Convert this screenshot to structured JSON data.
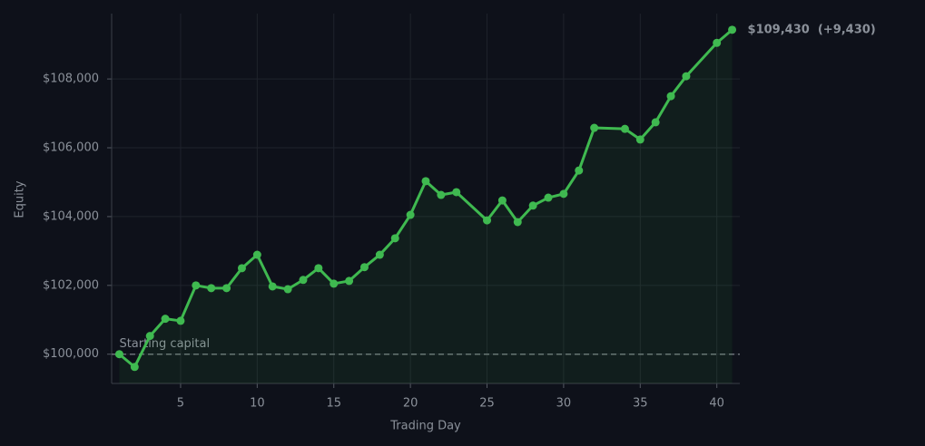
{
  "chart_data": {
    "type": "line",
    "xlabel": "Trading Day",
    "ylabel": "Equity",
    "x": [
      1,
      2,
      3,
      4,
      5,
      6,
      7,
      8,
      9,
      10,
      11,
      12,
      13,
      14,
      15,
      16,
      17,
      18,
      19,
      20,
      21,
      22,
      23,
      25,
      26,
      27,
      28,
      29,
      30,
      31,
      32,
      34,
      35,
      36,
      37,
      38,
      40,
      41
    ],
    "series": [
      {
        "name": "Equity",
        "color": "#3fb950",
        "values": [
          100000,
          99630,
          100530,
          101030,
          100970,
          102000,
          101920,
          101920,
          102500,
          102890,
          101970,
          101890,
          102160,
          102500,
          102050,
          102130,
          102530,
          102890,
          103370,
          104050,
          105030,
          104630,
          104710,
          103890,
          104470,
          103840,
          104320,
          104550,
          104660,
          105340,
          106580,
          106550,
          106240,
          106740,
          107500,
          108080,
          109050,
          109430
        ]
      }
    ],
    "xlim": [
      0.5,
      41.5
    ],
    "ylim": [
      99150,
      109900
    ],
    "xticks": [
      5,
      10,
      15,
      20,
      25,
      30,
      35,
      40
    ],
    "yticks": [
      {
        "value": 100000,
        "label": "$100,000"
      },
      {
        "value": 102000,
        "label": "$102,000"
      },
      {
        "value": 104000,
        "label": "$104,000"
      },
      {
        "value": 106000,
        "label": "$106,000"
      },
      {
        "value": 108000,
        "label": "$108,000"
      }
    ],
    "grid": true,
    "reference_line": {
      "value": 100000,
      "label": "Starting capital"
    },
    "end_label": "$109,430  (+9,430)"
  }
}
